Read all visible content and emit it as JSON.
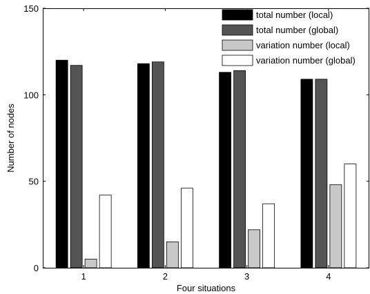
{
  "chart_data": {
    "type": "bar",
    "title": "",
    "xlabel": "Four situations",
    "ylabel": "Number of nodes",
    "categories": [
      "1",
      "2",
      "3",
      "4"
    ],
    "ylim": [
      0,
      150
    ],
    "yticks": [
      0,
      50,
      100,
      150
    ],
    "grid": false,
    "legend_position": "top-right",
    "series": [
      {
        "name": "total number (local)",
        "values": [
          120,
          118,
          113,
          109
        ],
        "color": "#000000"
      },
      {
        "name": "total number (global)",
        "values": [
          117,
          119,
          114,
          109
        ],
        "color": "#545454"
      },
      {
        "name": "variation number (local)",
        "values": [
          5,
          15,
          22,
          48
        ],
        "color": "#c8c8c8"
      },
      {
        "name": "variation number (global)",
        "values": [
          42,
          46,
          37,
          60
        ],
        "color": "#ffffff"
      }
    ]
  }
}
